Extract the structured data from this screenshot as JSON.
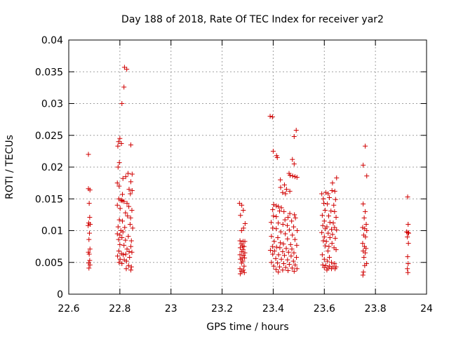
{
  "chart_data": {
    "type": "scatter",
    "title": "Day 188 of 2018, Rate Of TEC Index for receiver yar2",
    "xlabel": "GPS time / hours",
    "ylabel": "ROTI / TECUs",
    "xlim": [
      22.6,
      24.0
    ],
    "ylim": [
      0,
      0.04
    ],
    "xticks": [
      "22.6",
      "22.8",
      "23",
      "23.2",
      "23.4",
      "23.6",
      "23.8",
      "24"
    ],
    "yticks": [
      "0",
      "0.005",
      "0.01",
      "0.015",
      "0.02",
      "0.025",
      "0.03",
      "0.035",
      "0.04"
    ],
    "xtick_values": [
      22.6,
      22.8,
      23.0,
      23.2,
      23.4,
      23.6,
      23.8,
      24.0
    ],
    "ytick_values": [
      0,
      0.005,
      0.01,
      0.015,
      0.02,
      0.025,
      0.03,
      0.035,
      0.04
    ],
    "grid": true,
    "marker": "+",
    "marker_color": "#d00000",
    "series": [
      {
        "name": "ROTI",
        "points": [
          [
            22.677,
            0.022
          ],
          [
            22.677,
            0.0166
          ],
          [
            22.683,
            0.0164
          ],
          [
            22.68,
            0.0143
          ],
          [
            22.682,
            0.0121
          ],
          [
            22.678,
            0.0112
          ],
          [
            22.684,
            0.011
          ],
          [
            22.676,
            0.0108
          ],
          [
            22.681,
            0.0096
          ],
          [
            22.679,
            0.0086
          ],
          [
            22.683,
            0.0071
          ],
          [
            22.677,
            0.0066
          ],
          [
            22.68,
            0.0063
          ],
          [
            22.682,
            0.0053
          ],
          [
            22.678,
            0.0049
          ],
          [
            22.683,
            0.0046
          ],
          [
            22.679,
            0.0041
          ],
          [
            22.818,
            0.0357
          ],
          [
            22.827,
            0.0354
          ],
          [
            22.816,
            0.0326
          ],
          [
            22.808,
            0.03
          ],
          [
            22.8,
            0.0245
          ],
          [
            22.795,
            0.024
          ],
          [
            22.806,
            0.0237
          ],
          [
            22.792,
            0.0233
          ],
          [
            22.843,
            0.0235
          ],
          [
            22.798,
            0.0207
          ],
          [
            22.793,
            0.02
          ],
          [
            22.832,
            0.019
          ],
          [
            22.848,
            0.0189
          ],
          [
            22.823,
            0.0185
          ],
          [
            22.812,
            0.0182
          ],
          [
            22.79,
            0.0175
          ],
          [
            22.843,
            0.0177
          ],
          [
            22.797,
            0.017
          ],
          [
            22.836,
            0.0165
          ],
          [
            22.848,
            0.0163
          ],
          [
            22.81,
            0.0157
          ],
          [
            22.841,
            0.0158
          ],
          [
            22.796,
            0.015
          ],
          [
            22.805,
            0.0148
          ],
          [
            22.809,
            0.0147
          ],
          [
            22.816,
            0.0146
          ],
          [
            22.828,
            0.0143
          ],
          [
            22.79,
            0.014
          ],
          [
            22.801,
            0.0135
          ],
          [
            22.835,
            0.0138
          ],
          [
            22.847,
            0.0132
          ],
          [
            22.822,
            0.0128
          ],
          [
            22.83,
            0.0123
          ],
          [
            22.842,
            0.012
          ],
          [
            22.798,
            0.0117
          ],
          [
            22.81,
            0.0115
          ],
          [
            22.84,
            0.011
          ],
          [
            22.793,
            0.0106
          ],
          [
            22.819,
            0.0105
          ],
          [
            22.85,
            0.0104
          ],
          [
            22.804,
            0.01
          ],
          [
            22.812,
            0.0098
          ],
          [
            22.79,
            0.0095
          ],
          [
            22.8,
            0.0093
          ],
          [
            22.833,
            0.0091
          ],
          [
            22.808,
            0.0089
          ],
          [
            22.795,
            0.0086
          ],
          [
            22.822,
            0.0085
          ],
          [
            22.845,
            0.0084
          ],
          [
            22.8,
            0.0078
          ],
          [
            22.816,
            0.0077
          ],
          [
            22.843,
            0.0075
          ],
          [
            22.828,
            0.0071
          ],
          [
            22.796,
            0.0068
          ],
          [
            22.836,
            0.0067
          ],
          [
            22.847,
            0.0066
          ],
          [
            22.806,
            0.0064
          ],
          [
            22.813,
            0.0062
          ],
          [
            22.823,
            0.0063
          ],
          [
            22.791,
            0.006
          ],
          [
            22.838,
            0.0058
          ],
          [
            22.801,
            0.0055
          ],
          [
            22.817,
            0.0054
          ],
          [
            22.826,
            0.0052
          ],
          [
            22.797,
            0.005
          ],
          [
            22.808,
            0.0048
          ],
          [
            22.834,
            0.0045
          ],
          [
            22.845,
            0.0043
          ],
          [
            22.825,
            0.004
          ],
          [
            22.843,
            0.0038
          ],
          [
            23.268,
            0.0143
          ],
          [
            23.277,
            0.014
          ],
          [
            23.283,
            0.0132
          ],
          [
            23.272,
            0.0124
          ],
          [
            23.29,
            0.0111
          ],
          [
            23.284,
            0.0104
          ],
          [
            23.276,
            0.01
          ],
          [
            23.27,
            0.0084
          ],
          [
            23.282,
            0.0083
          ],
          [
            23.289,
            0.0083
          ],
          [
            23.275,
            0.0079
          ],
          [
            23.28,
            0.0076
          ],
          [
            23.286,
            0.0075
          ],
          [
            23.271,
            0.0073
          ],
          [
            23.282,
            0.007
          ],
          [
            23.277,
            0.0067
          ],
          [
            23.289,
            0.0065
          ],
          [
            23.27,
            0.0062
          ],
          [
            23.284,
            0.0061
          ],
          [
            23.278,
            0.0057
          ],
          [
            23.288,
            0.0057
          ],
          [
            23.272,
            0.0055
          ],
          [
            23.281,
            0.0052
          ],
          [
            23.276,
            0.0049
          ],
          [
            23.286,
            0.0044
          ],
          [
            23.27,
            0.004
          ],
          [
            23.283,
            0.0038
          ],
          [
            23.276,
            0.0036
          ],
          [
            23.287,
            0.0034
          ],
          [
            23.271,
            0.0032
          ],
          [
            23.388,
            0.028
          ],
          [
            23.397,
            0.0279
          ],
          [
            23.49,
            0.0258
          ],
          [
            23.482,
            0.0248
          ],
          [
            23.4,
            0.0225
          ],
          [
            23.413,
            0.0218
          ],
          [
            23.416,
            0.0215
          ],
          [
            23.475,
            0.0212
          ],
          [
            23.482,
            0.0205
          ],
          [
            23.462,
            0.019
          ],
          [
            23.466,
            0.0187
          ],
          [
            23.476,
            0.0186
          ],
          [
            23.485,
            0.0185
          ],
          [
            23.493,
            0.0184
          ],
          [
            23.428,
            0.018
          ],
          [
            23.444,
            0.0172
          ],
          [
            23.429,
            0.0168
          ],
          [
            23.452,
            0.0165
          ],
          [
            23.465,
            0.0162
          ],
          [
            23.437,
            0.016
          ],
          [
            23.448,
            0.0158
          ],
          [
            23.402,
            0.0141
          ],
          [
            23.412,
            0.0139
          ],
          [
            23.42,
            0.0138
          ],
          [
            23.432,
            0.0136
          ],
          [
            23.398,
            0.0133
          ],
          [
            23.425,
            0.0131
          ],
          [
            23.442,
            0.013
          ],
          [
            23.465,
            0.0127
          ],
          [
            23.483,
            0.0125
          ],
          [
            23.401,
            0.0123
          ],
          [
            23.412,
            0.0122
          ],
          [
            23.458,
            0.0121
          ],
          [
            23.487,
            0.012
          ],
          [
            23.446,
            0.0117
          ],
          [
            23.472,
            0.0115
          ],
          [
            23.392,
            0.0113
          ],
          [
            23.42,
            0.0112
          ],
          [
            23.438,
            0.011
          ],
          [
            23.455,
            0.0108
          ],
          [
            23.48,
            0.0106
          ],
          [
            23.398,
            0.0104
          ],
          [
            23.412,
            0.0103
          ],
          [
            23.463,
            0.0101
          ],
          [
            23.494,
            0.01
          ],
          [
            23.43,
            0.0098
          ],
          [
            23.447,
            0.0095
          ],
          [
            23.475,
            0.0093
          ],
          [
            23.393,
            0.0091
          ],
          [
            23.418,
            0.0089
          ],
          [
            23.456,
            0.0087
          ],
          [
            23.485,
            0.0086
          ],
          [
            23.404,
            0.0083
          ],
          [
            23.428,
            0.0081
          ],
          [
            23.44,
            0.0079
          ],
          [
            23.468,
            0.0078
          ],
          [
            23.492,
            0.0077
          ],
          [
            23.397,
            0.0075
          ],
          [
            23.413,
            0.0074
          ],
          [
            23.426,
            0.0073
          ],
          [
            23.451,
            0.0072
          ],
          [
            23.473,
            0.0071
          ],
          [
            23.389,
            0.0069
          ],
          [
            23.405,
            0.0068
          ],
          [
            23.437,
            0.0067
          ],
          [
            23.46,
            0.0066
          ],
          [
            23.481,
            0.0065
          ],
          [
            23.398,
            0.0063
          ],
          [
            23.421,
            0.0062
          ],
          [
            23.444,
            0.0061
          ],
          [
            23.47,
            0.006
          ],
          [
            23.491,
            0.0058
          ],
          [
            23.41,
            0.0056
          ],
          [
            23.432,
            0.0055
          ],
          [
            23.456,
            0.0054
          ],
          [
            23.479,
            0.0052
          ],
          [
            23.393,
            0.005
          ],
          [
            23.417,
            0.0049
          ],
          [
            23.441,
            0.0048
          ],
          [
            23.463,
            0.0047
          ],
          [
            23.486,
            0.0046
          ],
          [
            23.402,
            0.0044
          ],
          [
            23.425,
            0.0043
          ],
          [
            23.449,
            0.0042
          ],
          [
            23.474,
            0.0041
          ],
          [
            23.493,
            0.004
          ],
          [
            23.411,
            0.0039
          ],
          [
            23.437,
            0.0038
          ],
          [
            23.458,
            0.0037
          ],
          [
            23.482,
            0.0036
          ],
          [
            23.42,
            0.0035
          ],
          [
            23.59,
            0.0158
          ],
          [
            23.606,
            0.016
          ],
          [
            23.615,
            0.0158
          ],
          [
            23.63,
            0.0163
          ],
          [
            23.641,
            0.0162
          ],
          [
            23.648,
            0.0183
          ],
          [
            23.632,
            0.0175
          ],
          [
            23.596,
            0.015
          ],
          [
            23.62,
            0.0152
          ],
          [
            23.644,
            0.0149
          ],
          [
            23.598,
            0.0143
          ],
          [
            23.612,
            0.0142
          ],
          [
            23.637,
            0.014
          ],
          [
            23.603,
            0.0132
          ],
          [
            23.626,
            0.0131
          ],
          [
            23.64,
            0.013
          ],
          [
            23.592,
            0.0124
          ],
          [
            23.617,
            0.0123
          ],
          [
            23.646,
            0.0121
          ],
          [
            23.6,
            0.0115
          ],
          [
            23.622,
            0.0113
          ],
          [
            23.635,
            0.0112
          ],
          [
            23.594,
            0.0108
          ],
          [
            23.61,
            0.0106
          ],
          [
            23.64,
            0.0105
          ],
          [
            23.604,
            0.0103
          ],
          [
            23.628,
            0.0102
          ],
          [
            23.648,
            0.0101
          ],
          [
            23.59,
            0.0097
          ],
          [
            23.615,
            0.0096
          ],
          [
            23.632,
            0.0094
          ],
          [
            23.6,
            0.009
          ],
          [
            23.622,
            0.0089
          ],
          [
            23.643,
            0.0088
          ],
          [
            23.596,
            0.0084
          ],
          [
            23.608,
            0.0083
          ],
          [
            23.63,
            0.008
          ],
          [
            23.604,
            0.0076
          ],
          [
            23.618,
            0.0075
          ],
          [
            23.638,
            0.0073
          ],
          [
            23.646,
            0.007
          ],
          [
            23.614,
            0.0068
          ],
          [
            23.592,
            0.0062
          ],
          [
            23.62,
            0.0058
          ],
          [
            23.6,
            0.0055
          ],
          [
            23.612,
            0.0052
          ],
          [
            23.628,
            0.005
          ],
          [
            23.64,
            0.0048
          ],
          [
            23.594,
            0.0046
          ],
          [
            23.606,
            0.0045
          ],
          [
            23.62,
            0.0044
          ],
          [
            23.634,
            0.0043
          ],
          [
            23.646,
            0.0043
          ],
          [
            23.6,
            0.0042
          ],
          [
            23.615,
            0.0041
          ],
          [
            23.628,
            0.004
          ],
          [
            23.642,
            0.004
          ],
          [
            23.61,
            0.0038
          ],
          [
            23.76,
            0.0233
          ],
          [
            23.752,
            0.0203
          ],
          [
            23.766,
            0.0186
          ],
          [
            23.752,
            0.0142
          ],
          [
            23.76,
            0.013
          ],
          [
            23.756,
            0.012
          ],
          [
            23.764,
            0.011
          ],
          [
            23.75,
            0.0105
          ],
          [
            23.758,
            0.0103
          ],
          [
            23.766,
            0.01
          ],
          [
            23.754,
            0.0093
          ],
          [
            23.761,
            0.009
          ],
          [
            23.75,
            0.008
          ],
          [
            23.757,
            0.0075
          ],
          [
            23.763,
            0.0072
          ],
          [
            23.752,
            0.0068
          ],
          [
            23.76,
            0.0065
          ],
          [
            23.755,
            0.0058
          ],
          [
            23.765,
            0.0048
          ],
          [
            23.758,
            0.0045
          ],
          [
            23.753,
            0.0035
          ],
          [
            23.751,
            0.003
          ],
          [
            23.926,
            0.0153
          ],
          [
            23.928,
            0.011
          ],
          [
            23.922,
            0.0098
          ],
          [
            23.927,
            0.0097
          ],
          [
            23.93,
            0.0096
          ],
          [
            23.925,
            0.009
          ],
          [
            23.929,
            0.008
          ],
          [
            23.926,
            0.0059
          ],
          [
            23.928,
            0.0048
          ],
          [
            23.925,
            0.004
          ],
          [
            23.927,
            0.0034
          ]
        ]
      }
    ]
  }
}
